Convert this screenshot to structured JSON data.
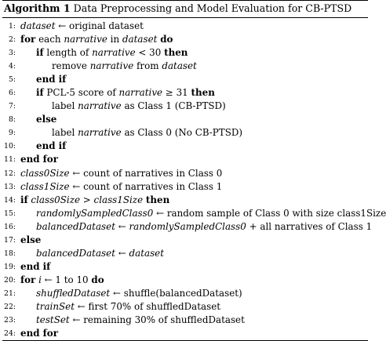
{
  "caption": {
    "label": "Algorithm 1",
    "title": "Data Preprocessing and Model Evaluation for CB-PTSD"
  },
  "lines": [
    {
      "num": "1:",
      "indent": 0,
      "parts": [
        {
          "t": "dataset",
          "s": "it"
        },
        {
          "t": " ← original dataset"
        }
      ]
    },
    {
      "num": "2:",
      "indent": 0,
      "parts": [
        {
          "t": "for",
          "s": "kw"
        },
        {
          "t": " each "
        },
        {
          "t": "narrative",
          "s": "it"
        },
        {
          "t": " in "
        },
        {
          "t": "dataset",
          "s": "it"
        },
        {
          "t": " "
        },
        {
          "t": "do",
          "s": "kw"
        }
      ]
    },
    {
      "num": "3:",
      "indent": 1,
      "parts": [
        {
          "t": "if",
          "s": "kw"
        },
        {
          "t": " length of "
        },
        {
          "t": "narrative",
          "s": "it"
        },
        {
          "t": " < 30 "
        },
        {
          "t": "then",
          "s": "kw"
        }
      ]
    },
    {
      "num": "4:",
      "indent": 2,
      "parts": [
        {
          "t": "remove "
        },
        {
          "t": "narrative",
          "s": "it"
        },
        {
          "t": " from "
        },
        {
          "t": "dataset",
          "s": "it"
        }
      ]
    },
    {
      "num": "5:",
      "indent": 1,
      "parts": [
        {
          "t": "end if",
          "s": "kw"
        }
      ]
    },
    {
      "num": "6:",
      "indent": 1,
      "parts": [
        {
          "t": "if",
          "s": "kw"
        },
        {
          "t": " PCL-5 score of "
        },
        {
          "t": "narrative",
          "s": "it"
        },
        {
          "t": " ≥ 31 "
        },
        {
          "t": "then",
          "s": "kw"
        }
      ]
    },
    {
      "num": "7:",
      "indent": 2,
      "parts": [
        {
          "t": "label "
        },
        {
          "t": "narrative",
          "s": "it"
        },
        {
          "t": " as Class 1 (CB-PTSD)"
        }
      ]
    },
    {
      "num": "8:",
      "indent": 1,
      "parts": [
        {
          "t": "else",
          "s": "kw"
        }
      ]
    },
    {
      "num": "9:",
      "indent": 2,
      "parts": [
        {
          "t": "label "
        },
        {
          "t": "narrative",
          "s": "it"
        },
        {
          "t": " as Class 0 (No CB-PTSD)"
        }
      ]
    },
    {
      "num": "10:",
      "indent": 1,
      "parts": [
        {
          "t": "end if",
          "s": "kw"
        }
      ]
    },
    {
      "num": "11:",
      "indent": 0,
      "parts": [
        {
          "t": "end for",
          "s": "kw"
        }
      ]
    },
    {
      "num": "12:",
      "indent": 0,
      "parts": [
        {
          "t": "class0Size",
          "s": "it"
        },
        {
          "t": " ← count of narratives in Class 0"
        }
      ]
    },
    {
      "num": "13:",
      "indent": 0,
      "parts": [
        {
          "t": "class1Size",
          "s": "it"
        },
        {
          "t": " ← count of narratives in Class 1"
        }
      ]
    },
    {
      "num": "14:",
      "indent": 0,
      "parts": [
        {
          "t": "if",
          "s": "kw"
        },
        {
          "t": " "
        },
        {
          "t": "class0Size",
          "s": "it"
        },
        {
          "t": " > "
        },
        {
          "t": "class1Size",
          "s": "it"
        },
        {
          "t": " "
        },
        {
          "t": "then",
          "s": "kw"
        }
      ]
    },
    {
      "num": "15:",
      "indent": 1,
      "parts": [
        {
          "t": "randomlySampledClass0",
          "s": "it"
        },
        {
          "t": " ← random sample of Class 0 with size class1Size"
        }
      ]
    },
    {
      "num": "16:",
      "indent": 1,
      "parts": [
        {
          "t": "balancedDataset",
          "s": "it"
        },
        {
          "t": " ← "
        },
        {
          "t": "randomlySampledClass0",
          "s": "it"
        },
        {
          "t": " + all narratives of Class 1"
        }
      ]
    },
    {
      "num": "17:",
      "indent": 0,
      "parts": [
        {
          "t": "else",
          "s": "kw"
        }
      ]
    },
    {
      "num": "18:",
      "indent": 1,
      "parts": [
        {
          "t": "balancedDataset",
          "s": "it"
        },
        {
          "t": " ← "
        },
        {
          "t": "dataset",
          "s": "it"
        }
      ]
    },
    {
      "num": "19:",
      "indent": 0,
      "parts": [
        {
          "t": "end if",
          "s": "kw"
        }
      ]
    },
    {
      "num": "20:",
      "indent": 0,
      "parts": [
        {
          "t": "for",
          "s": "kw"
        },
        {
          "t": " "
        },
        {
          "t": "i",
          "s": "it"
        },
        {
          "t": " ← 1 to 10 "
        },
        {
          "t": "do",
          "s": "kw"
        }
      ]
    },
    {
      "num": "21:",
      "indent": 1,
      "parts": [
        {
          "t": "shuffledDataset",
          "s": "it"
        },
        {
          "t": " ← shuffle(balancedDataset)"
        }
      ]
    },
    {
      "num": "22:",
      "indent": 1,
      "parts": [
        {
          "t": "trainSet",
          "s": "it"
        },
        {
          "t": " ← first 70% of shuffledDataset"
        }
      ]
    },
    {
      "num": "23:",
      "indent": 1,
      "parts": [
        {
          "t": "testSet",
          "s": "it"
        },
        {
          "t": " ← remaining 30% of shuffledDataset"
        }
      ]
    },
    {
      "num": "24:",
      "indent": 0,
      "parts": [
        {
          "t": "end for",
          "s": "kw"
        }
      ]
    }
  ]
}
